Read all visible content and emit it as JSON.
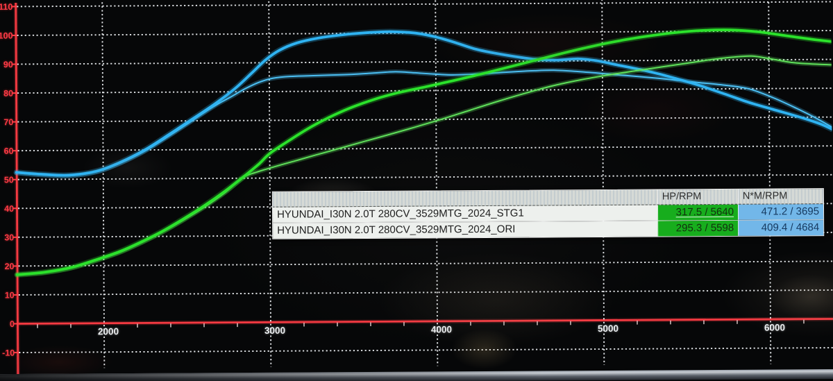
{
  "chart_data": {
    "type": "line",
    "title": "",
    "xlabel": "",
    "ylabel": "",
    "x_ticks": [
      2000,
      3000,
      4000,
      5000,
      6000
    ],
    "y_ticks": [
      110,
      100,
      90,
      80,
      70,
      60,
      50,
      40,
      30,
      20,
      10,
      0,
      -10
    ],
    "xlim": [
      1450,
      6400
    ],
    "ylim": [
      -10,
      110
    ],
    "grid": "white dotted, on",
    "legend_position": "none (results table overlay)",
    "series": [
      {
        "id": "ori_nm",
        "name": "HYUNDAI_I30N 2.0T 280CV_3529MTG_2024_ORI torque (N*M)",
        "color": "#4cc0f4",
        "width": 2,
        "points": [
          [
            1479,
            52.3
          ],
          [
            1625,
            51.6
          ],
          [
            1792,
            51.2
          ],
          [
            1958,
            52.5
          ],
          [
            2104,
            55.5
          ],
          [
            2250,
            59.6
          ],
          [
            2396,
            64.8
          ],
          [
            2542,
            70.3
          ],
          [
            2667,
            75.0
          ],
          [
            2771,
            78.3
          ],
          [
            2854,
            81.0
          ],
          [
            2937,
            83.2
          ],
          [
            3021,
            84.6
          ],
          [
            3125,
            85.2
          ],
          [
            3250,
            85.4
          ],
          [
            3375,
            85.6
          ],
          [
            3500,
            85.8
          ],
          [
            3625,
            86.2
          ],
          [
            3758,
            86.6
          ],
          [
            3875,
            86.2
          ],
          [
            3992,
            85.7
          ],
          [
            4104,
            85.4
          ],
          [
            4229,
            85.6
          ],
          [
            4354,
            86.0
          ],
          [
            4479,
            86.4
          ],
          [
            4592,
            86.7
          ],
          [
            4708,
            86.8
          ],
          [
            4833,
            86.4
          ],
          [
            4958,
            85.8
          ],
          [
            5083,
            85.1
          ],
          [
            5208,
            84.5
          ],
          [
            5333,
            83.8
          ],
          [
            5458,
            83.0
          ],
          [
            5583,
            82.2
          ],
          [
            5729,
            81.3
          ],
          [
            5875,
            80.0
          ],
          [
            6021,
            76.9
          ],
          [
            6167,
            73.0
          ],
          [
            6292,
            69.3
          ],
          [
            6375,
            66.5
          ]
        ]
      },
      {
        "id": "stg1_nm",
        "name": "HYUNDAI_I30N 2.0T 280CV_3529MTG_2024_STG1 torque (N*M)",
        "color": "#2fb3f2",
        "width": 3.8,
        "points": [
          [
            1479,
            52.5
          ],
          [
            1625,
            51.8
          ],
          [
            1792,
            51.4
          ],
          [
            1958,
            52.7
          ],
          [
            2104,
            55.8
          ],
          [
            2250,
            60.0
          ],
          [
            2396,
            65.3
          ],
          [
            2542,
            70.8
          ],
          [
            2667,
            75.6
          ],
          [
            2792,
            81.0
          ],
          [
            2896,
            86.5
          ],
          [
            2979,
            91.0
          ],
          [
            3062,
            94.3
          ],
          [
            3167,
            96.8
          ],
          [
            3292,
            98.4
          ],
          [
            3437,
            99.5
          ],
          [
            3583,
            100.2
          ],
          [
            3729,
            100.5
          ],
          [
            3875,
            100.0
          ],
          [
            4000,
            98.6
          ],
          [
            4117,
            96.6
          ],
          [
            4233,
            94.4
          ],
          [
            4350,
            92.9
          ],
          [
            4479,
            91.6
          ],
          [
            4604,
            90.6
          ],
          [
            4729,
            90.3
          ],
          [
            4854,
            90.7
          ],
          [
            4967,
            90.0
          ],
          [
            5083,
            88.6
          ],
          [
            5208,
            87.1
          ],
          [
            5333,
            85.4
          ],
          [
            5458,
            83.4
          ],
          [
            5583,
            81.2
          ],
          [
            5729,
            78.3
          ],
          [
            5875,
            75.3
          ],
          [
            6021,
            72.8
          ],
          [
            6208,
            69.6
          ],
          [
            6312,
            67.5
          ],
          [
            6375,
            65.8
          ]
        ]
      },
      {
        "id": "ori_hp",
        "name": "HYUNDAI_I30N 2.0T 280CV_3529MTG_2024_ORI power (HP)",
        "color": "#5fe05a",
        "width": 2,
        "points": [
          [
            1479,
            17.0
          ],
          [
            1646,
            17.7
          ],
          [
            1812,
            19.3
          ],
          [
            1979,
            22.2
          ],
          [
            2104,
            24.7
          ],
          [
            2229,
            27.9
          ],
          [
            2354,
            31.5
          ],
          [
            2479,
            35.6
          ],
          [
            2604,
            40.0
          ],
          [
            2729,
            45.0
          ],
          [
            2842,
            50.3
          ],
          [
            2917,
            52.0
          ],
          [
            3021,
            53.8
          ],
          [
            3146,
            55.8
          ],
          [
            3271,
            57.8
          ],
          [
            3417,
            60.1
          ],
          [
            3562,
            62.4
          ],
          [
            3708,
            64.7
          ],
          [
            3875,
            67.4
          ],
          [
            4042,
            70.2
          ],
          [
            4208,
            73.2
          ],
          [
            4375,
            76.2
          ],
          [
            4542,
            79.0
          ],
          [
            4708,
            81.5
          ],
          [
            4875,
            83.5
          ],
          [
            5042,
            85.1
          ],
          [
            5208,
            86.5
          ],
          [
            5375,
            87.9
          ],
          [
            5500,
            88.9
          ],
          [
            5646,
            90.1
          ],
          [
            5771,
            90.9
          ],
          [
            5896,
            91.3
          ],
          [
            6021,
            90.2
          ],
          [
            6167,
            88.8
          ],
          [
            6375,
            88.1
          ]
        ]
      },
      {
        "id": "stg1_hp",
        "name": "HYUNDAI_I30N 2.0T 280CV_3529MTG_2024_STG1 power (HP)",
        "color": "#2be22b",
        "width": 3.8,
        "points": [
          [
            1479,
            17.0
          ],
          [
            1646,
            17.8
          ],
          [
            1812,
            19.5
          ],
          [
            1979,
            22.5
          ],
          [
            2104,
            25.0
          ],
          [
            2229,
            28.2
          ],
          [
            2354,
            31.8
          ],
          [
            2479,
            36.0
          ],
          [
            2604,
            40.5
          ],
          [
            2729,
            45.5
          ],
          [
            2842,
            50.5
          ],
          [
            2937,
            55.0
          ],
          [
            3000,
            58.5
          ],
          [
            3104,
            62.5
          ],
          [
            3229,
            67.0
          ],
          [
            3354,
            70.8
          ],
          [
            3479,
            74.0
          ],
          [
            3625,
            77.0
          ],
          [
            3771,
            79.3
          ],
          [
            3937,
            81.3
          ],
          [
            4104,
            83.4
          ],
          [
            4271,
            85.6
          ],
          [
            4437,
            88.0
          ],
          [
            4604,
            90.4
          ],
          [
            4771,
            92.8
          ],
          [
            4937,
            95.0
          ],
          [
            5104,
            96.9
          ],
          [
            5271,
            98.4
          ],
          [
            5437,
            99.6
          ],
          [
            5604,
            100.3
          ],
          [
            5771,
            100.4
          ],
          [
            5937,
            99.7
          ],
          [
            6104,
            98.3
          ],
          [
            6271,
            96.9
          ],
          [
            6375,
            96.2
          ]
        ]
      }
    ]
  },
  "axes": {
    "axis_color": "#f63a42",
    "y_label_color": "#ff3a46",
    "x_label_color": "#eceff1"
  },
  "table": {
    "headers": {
      "name": "",
      "hp": "HP/RPM",
      "nm": "N*M/RPM"
    },
    "rows": [
      {
        "name": "HYUNDAI_I30N 2.0T 280CV_3529MTG_2024_STG1",
        "hp": "317.5 / 5640",
        "nm": "471.2 / 3695"
      },
      {
        "name": "HYUNDAI_I30N 2.0T 280CV_3529MTG_2024_ORI",
        "hp": "295.3 / 5598",
        "nm": "409.4 / 4684"
      }
    ],
    "colors": {
      "hp_cell": "#17ad1d",
      "nm_cell": "#72b7e9"
    }
  }
}
